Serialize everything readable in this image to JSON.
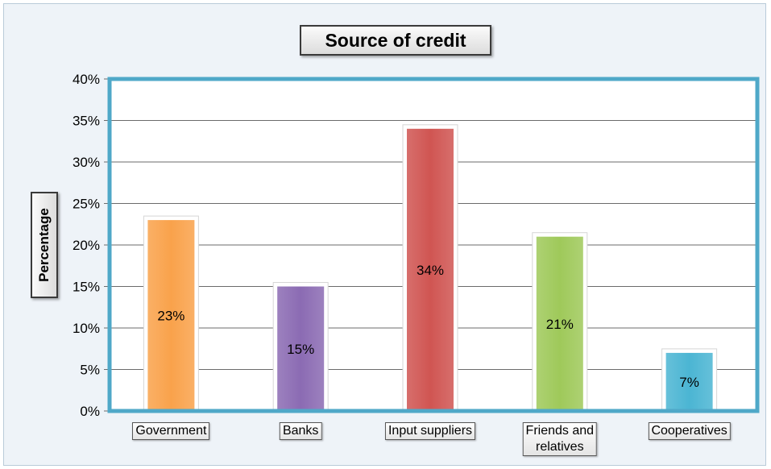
{
  "chart_data": {
    "type": "bar",
    "title": "Source of credit",
    "ylabel": "Percentage",
    "xlabel": "",
    "categories": [
      "Government",
      "Banks",
      "Input suppliers",
      "Friends and\nrelatives",
      "Cooperatives"
    ],
    "values": [
      23,
      15,
      34,
      21,
      7
    ],
    "data_labels": [
      "23%",
      "15%",
      "34%",
      "21%",
      "7%"
    ],
    "ylim": [
      0,
      40
    ],
    "yticks": [
      0,
      5,
      10,
      15,
      20,
      25,
      30,
      35,
      40
    ],
    "ytick_labels": [
      "0%",
      "5%",
      "10%",
      "15%",
      "20%",
      "25%",
      "30%",
      "35%",
      "40%"
    ],
    "grid": true,
    "legend": "none",
    "colors": [
      "#f9a24b",
      "#8b6bb3",
      "#d05552",
      "#9fc95a",
      "#4bb5d3"
    ],
    "plot_border_color": "#4fa8c8"
  }
}
